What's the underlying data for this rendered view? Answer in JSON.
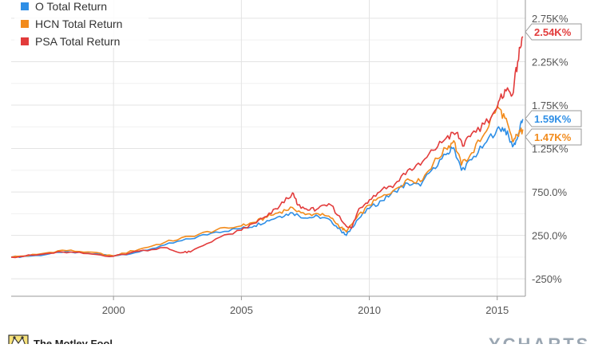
{
  "chart_data": {
    "type": "line",
    "x_ticks": [
      "2000",
      "2005",
      "2010",
      "2015"
    ],
    "y_ticks": [
      "2.75K%",
      "2.25K%",
      "1.75K%",
      "1.25K%",
      "750.0%",
      "250.0%",
      "-250%"
    ],
    "y_tick_values": [
      2750,
      2250,
      1750,
      1250,
      750,
      250,
      -250
    ],
    "xlim": [
      1996.0,
      2016.1
    ],
    "ylim": [
      -450,
      2960
    ],
    "grid": true,
    "legend_position": "top-left",
    "series": [
      {
        "name": "O Total Return",
        "color": "#2f8fe6",
        "end_label": "1.59K%",
        "points": [
          [
            1996.0,
            0
          ],
          [
            1997.0,
            20
          ],
          [
            1998.0,
            55
          ],
          [
            1999.0,
            45
          ],
          [
            2000.0,
            15
          ],
          [
            2001.0,
            60
          ],
          [
            2002.0,
            140
          ],
          [
            2003.0,
            210
          ],
          [
            2004.0,
            290
          ],
          [
            2005.0,
            330
          ],
          [
            2005.5,
            360
          ],
          [
            2006.0,
            420
          ],
          [
            2006.5,
            470
          ],
          [
            2007.0,
            510
          ],
          [
            2007.5,
            450
          ],
          [
            2008.0,
            470
          ],
          [
            2008.5,
            420
          ],
          [
            2008.9,
            300
          ],
          [
            2009.1,
            250
          ],
          [
            2009.5,
            420
          ],
          [
            2010.0,
            560
          ],
          [
            2010.5,
            650
          ],
          [
            2011.0,
            760
          ],
          [
            2011.5,
            850
          ],
          [
            2012.0,
            820
          ],
          [
            2012.5,
            1030
          ],
          [
            2013.0,
            1180
          ],
          [
            2013.3,
            1260
          ],
          [
            2013.6,
            1000
          ],
          [
            2014.0,
            1120
          ],
          [
            2014.5,
            1300
          ],
          [
            2015.0,
            1480
          ],
          [
            2015.3,
            1480
          ],
          [
            2015.6,
            1270
          ],
          [
            2015.8,
            1380
          ],
          [
            2016.0,
            1590
          ]
        ]
      },
      {
        "name": "HCN Total Return",
        "color": "#f28b1c",
        "end_label": "1.47K%",
        "points": [
          [
            1996.0,
            0
          ],
          [
            1997.0,
            30
          ],
          [
            1998.0,
            80
          ],
          [
            1999.0,
            60
          ],
          [
            2000.0,
            15
          ],
          [
            2001.0,
            90
          ],
          [
            2002.0,
            170
          ],
          [
            2003.0,
            240
          ],
          [
            2004.0,
            310
          ],
          [
            2005.0,
            360
          ],
          [
            2005.5,
            400
          ],
          [
            2006.0,
            460
          ],
          [
            2006.5,
            520
          ],
          [
            2007.0,
            570
          ],
          [
            2007.5,
            490
          ],
          [
            2008.0,
            500
          ],
          [
            2008.5,
            450
          ],
          [
            2008.9,
            340
          ],
          [
            2009.1,
            290
          ],
          [
            2009.5,
            450
          ],
          [
            2010.0,
            600
          ],
          [
            2010.5,
            700
          ],
          [
            2011.0,
            780
          ],
          [
            2011.5,
            900
          ],
          [
            2012.0,
            870
          ],
          [
            2012.5,
            1080
          ],
          [
            2013.0,
            1250
          ],
          [
            2013.3,
            1340
          ],
          [
            2013.6,
            1060
          ],
          [
            2014.0,
            1200
          ],
          [
            2014.5,
            1420
          ],
          [
            2015.0,
            1740
          ],
          [
            2015.3,
            1600
          ],
          [
            2015.6,
            1330
          ],
          [
            2015.8,
            1400
          ],
          [
            2016.0,
            1470
          ]
        ]
      },
      {
        "name": "PSA Total Return",
        "color": "#e23b3b",
        "end_label": "2.54K%",
        "points": [
          [
            1996.0,
            0
          ],
          [
            1997.0,
            25
          ],
          [
            1998.0,
            60
          ],
          [
            1999.0,
            40
          ],
          [
            2000.0,
            10
          ],
          [
            2001.0,
            70
          ],
          [
            2002.0,
            110
          ],
          [
            2002.6,
            50
          ],
          [
            2003.0,
            60
          ],
          [
            2004.0,
            210
          ],
          [
            2005.0,
            310
          ],
          [
            2005.5,
            390
          ],
          [
            2006.0,
            470
          ],
          [
            2006.5,
            590
          ],
          [
            2007.0,
            740
          ],
          [
            2007.2,
            600
          ],
          [
            2007.6,
            540
          ],
          [
            2008.0,
            560
          ],
          [
            2008.5,
            600
          ],
          [
            2009.0,
            390
          ],
          [
            2009.3,
            330
          ],
          [
            2009.6,
            560
          ],
          [
            2010.0,
            660
          ],
          [
            2010.5,
            780
          ],
          [
            2011.0,
            840
          ],
          [
            2011.5,
            1000
          ],
          [
            2012.0,
            1060
          ],
          [
            2012.5,
            1230
          ],
          [
            2013.0,
            1370
          ],
          [
            2013.4,
            1430
          ],
          [
            2013.7,
            1280
          ],
          [
            2014.0,
            1420
          ],
          [
            2014.5,
            1530
          ],
          [
            2015.0,
            1720
          ],
          [
            2015.3,
            1930
          ],
          [
            2015.6,
            1870
          ],
          [
            2015.8,
            2250
          ],
          [
            2016.0,
            2540
          ]
        ]
      }
    ]
  },
  "footer": {
    "brand_left": "The Motley Fool",
    "brand_right": "YCHARTS"
  }
}
